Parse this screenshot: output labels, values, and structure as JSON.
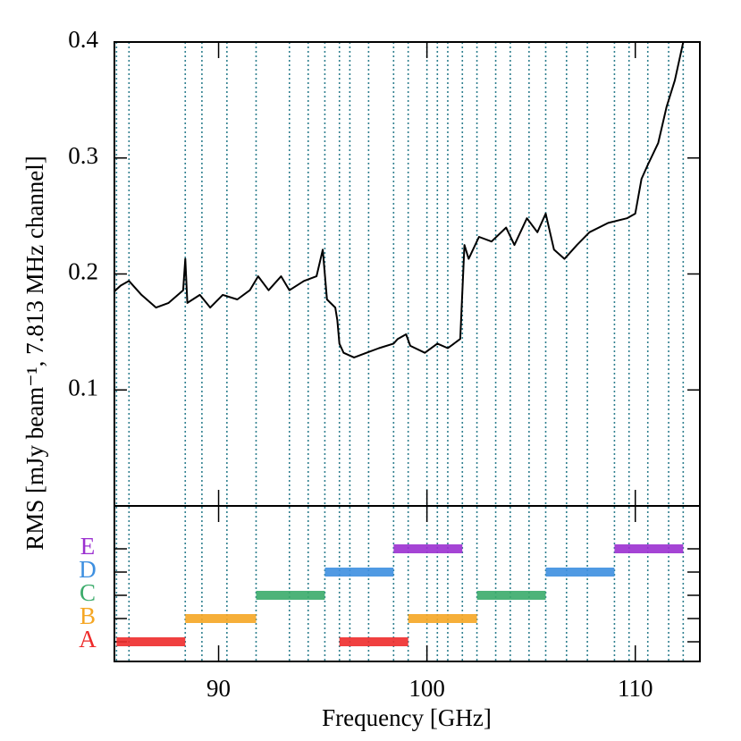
{
  "chart_data": [
    {
      "type": "line",
      "ylabel": "RMS [mJy beam⁻¹, 7.813 MHz channel]",
      "xlim": [
        85,
        113.1
      ],
      "ylim": [
        0,
        0.4
      ],
      "yticks": [
        0.1,
        0.2,
        0.3,
        0.4
      ],
      "window_edges": [
        85.1,
        85.7,
        88.4,
        89.2,
        90.4,
        91.8,
        93.4,
        94.3,
        95.1,
        95.8,
        96.3,
        97.2,
        98.4,
        99.1,
        100.0,
        100.5,
        101.0,
        101.7,
        102.4,
        103.3,
        104.0,
        104.9,
        105.7,
        106.7,
        107.7,
        109.0,
        109.7,
        110.6,
        111.6,
        112.3
      ],
      "edge_color": "#2f7f8f",
      "series": [
        {
          "color": "#000000",
          "x": [
            85.0,
            85.3,
            85.7,
            86.3,
            87.0,
            87.6,
            88.3,
            88.4,
            88.5,
            89.1,
            89.6,
            90.2,
            90.9,
            91.5,
            91.9,
            92.4,
            93.0,
            93.4,
            94.1,
            94.7,
            95.0,
            95.2,
            95.6,
            95.7,
            95.8,
            96.0,
            96.5,
            97.1,
            97.7,
            98.4,
            98.6,
            99.0,
            99.2,
            99.9,
            100.5,
            101.0,
            101.6,
            101.8,
            102.0,
            102.5,
            103.1,
            103.8,
            104.2,
            104.8,
            105.3,
            105.7,
            106.1,
            106.6,
            107.2,
            107.8,
            108.7,
            109.6,
            110.0,
            110.3,
            110.6,
            111.1,
            111.5,
            111.9,
            112.3
          ],
          "values": [
            0.185,
            0.19,
            0.194,
            0.182,
            0.171,
            0.175,
            0.186,
            0.213,
            0.175,
            0.182,
            0.171,
            0.182,
            0.178,
            0.186,
            0.198,
            0.186,
            0.198,
            0.186,
            0.194,
            0.198,
            0.221,
            0.178,
            0.171,
            0.16,
            0.14,
            0.132,
            0.128,
            0.132,
            0.136,
            0.14,
            0.144,
            0.148,
            0.138,
            0.132,
            0.14,
            0.136,
            0.144,
            0.225,
            0.213,
            0.232,
            0.228,
            0.24,
            0.225,
            0.248,
            0.236,
            0.252,
            0.221,
            0.213,
            0.225,
            0.236,
            0.244,
            0.248,
            0.252,
            0.282,
            0.294,
            0.313,
            0.344,
            0.367,
            0.4
          ]
        }
      ]
    },
    {
      "type": "range",
      "xlabel": "Frequency [GHz]",
      "xlim": [
        85,
        113.1
      ],
      "xticks": [
        90,
        100,
        110
      ],
      "setups": [
        {
          "name": "A",
          "color": "#ee2b2b",
          "ranges": [
            [
              85.1,
              88.4
            ],
            [
              95.8,
              99.1
            ]
          ]
        },
        {
          "name": "B",
          "color": "#f5a623",
          "ranges": [
            [
              88.4,
              91.8
            ],
            [
              99.1,
              102.4
            ]
          ]
        },
        {
          "name": "C",
          "color": "#3aab6a",
          "ranges": [
            [
              91.8,
              95.1
            ],
            [
              102.4,
              105.7
            ]
          ]
        },
        {
          "name": "D",
          "color": "#3d8fe0",
          "ranges": [
            [
              95.1,
              98.4
            ],
            [
              105.7,
              109.0
            ]
          ]
        },
        {
          "name": "E",
          "color": "#9b30d0",
          "ranges": [
            [
              98.4,
              101.7
            ],
            [
              109.0,
              112.3
            ]
          ]
        }
      ]
    }
  ]
}
